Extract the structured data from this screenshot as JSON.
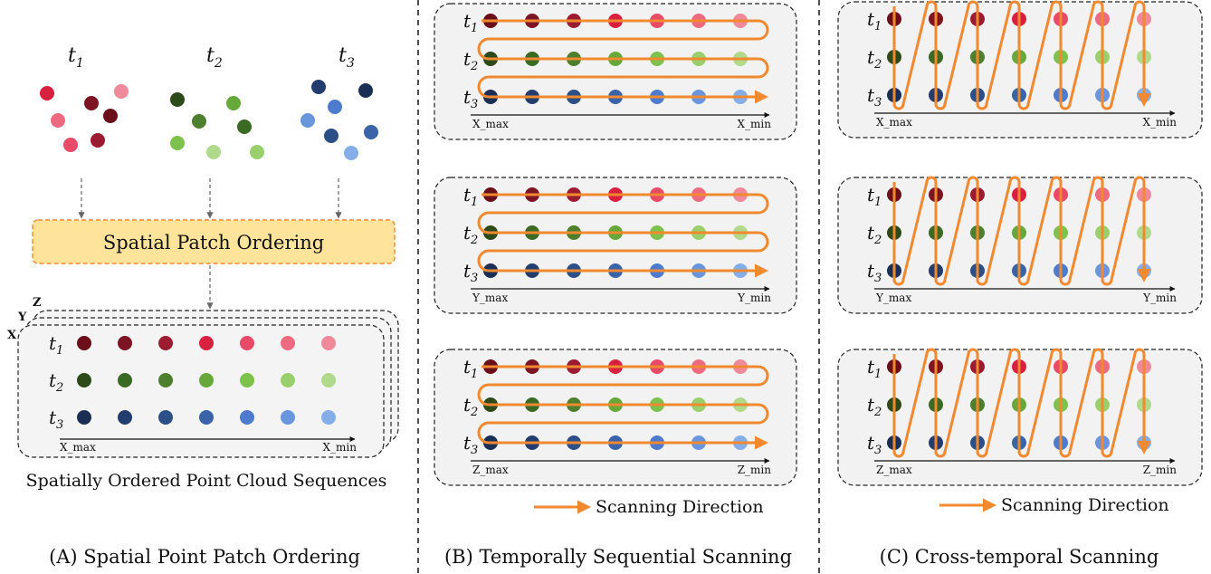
{
  "panelA": {
    "time_labels": [
      "t1",
      "t2",
      "t3"
    ],
    "ordering_box_label": "Spatial Patch Ordering",
    "stack_axis_labels": [
      "Z",
      "Y",
      "X"
    ],
    "axis_start": "X_max",
    "axis_end": "X_min",
    "caption": "Spatially Ordered Point Cloud Sequences",
    "title": "(A) Spatial Point Patch Ordering"
  },
  "panelB": {
    "boxes": [
      {
        "axis_start": "X_max",
        "axis_end": "X_min"
      },
      {
        "axis_start": "Y_max",
        "axis_end": "Y_min"
      },
      {
        "axis_start": "Z_max",
        "axis_end": "Z_min"
      }
    ],
    "legend": "Scanning Direction",
    "title": "(B) Temporally Sequential Scanning"
  },
  "panelC": {
    "boxes": [
      {
        "axis_start": "X_max",
        "axis_end": "X_min"
      },
      {
        "axis_start": "Y_max",
        "axis_end": "Y_min"
      },
      {
        "axis_start": "Z_max",
        "axis_end": "Z_min"
      }
    ],
    "legend": "Scanning Direction",
    "title": "(C) Cross-temporal Scanning"
  },
  "row_labels": [
    {
      "letter": "t",
      "sub": "1"
    },
    {
      "letter": "t",
      "sub": "2"
    },
    {
      "letter": "t",
      "sub": "3"
    }
  ],
  "colors": {
    "row_t1": [
      "#6b0f1a",
      "#7d1424",
      "#9b1b30",
      "#d8203f",
      "#e84a67",
      "#ee6a80",
      "#f08a9a"
    ],
    "row_t2": [
      "#2c4a1a",
      "#3b6a24",
      "#4d7f2e",
      "#66a83a",
      "#7cc24c",
      "#9ad06c",
      "#b0d98c"
    ],
    "row_t3": [
      "#1b2f55",
      "#233e6e",
      "#2b4f86",
      "#3a63a8",
      "#4f7bcf",
      "#6a96dd",
      "#85aee8"
    ],
    "scan_line": "#f0892f",
    "ordering_box_fill": "#fde49a",
    "ordering_box_border": "#f0892f",
    "panel_fill": "#f2f2f2"
  }
}
